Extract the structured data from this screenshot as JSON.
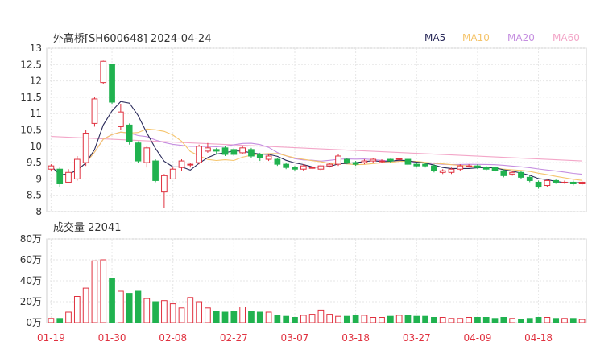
{
  "chart_data": [
    {
      "type": "candlestick",
      "title": "外高桥[SH600648] 2024-04-24",
      "legend": [
        {
          "name": "MA5",
          "color": "#2a2a5a"
        },
        {
          "name": "MA10",
          "color": "#f5c46b"
        },
        {
          "name": "MA20",
          "color": "#c58ee0"
        },
        {
          "name": "MA60",
          "color": "#f3a6c8"
        }
      ],
      "up_color": "#e0313f",
      "down_color": "#20b24f",
      "ylim": [
        8,
        13
      ],
      "yticks": [
        "13",
        "12.5",
        "12",
        "11.5",
        "11",
        "10.5",
        "10",
        "9.5",
        "9",
        "8.5",
        "8"
      ],
      "candles": [
        [
          9.3,
          9.4,
          9.45,
          9.25
        ],
        [
          9.3,
          8.85,
          9.35,
          8.75
        ],
        [
          8.9,
          9.2,
          9.3,
          8.9
        ],
        [
          9.0,
          9.6,
          9.7,
          8.95
        ],
        [
          9.5,
          10.4,
          10.5,
          9.4
        ],
        [
          10.7,
          11.45,
          11.5,
          10.6
        ],
        [
          11.95,
          12.6,
          12.62,
          11.9
        ],
        [
          12.5,
          11.35,
          12.5,
          11.3
        ],
        [
          10.6,
          11.05,
          11.3,
          10.5
        ],
        [
          10.65,
          10.15,
          10.7,
          10.05
        ],
        [
          10.1,
          9.55,
          10.15,
          9.5
        ],
        [
          9.5,
          9.95,
          10.0,
          9.35
        ],
        [
          9.55,
          8.95,
          9.6,
          8.9
        ],
        [
          8.6,
          9.1,
          9.15,
          8.1
        ],
        [
          9.0,
          9.3,
          9.35,
          9.0
        ],
        [
          9.35,
          9.55,
          9.6,
          9.25
        ],
        [
          9.45,
          9.45,
          9.5,
          9.35
        ],
        [
          9.5,
          10.0,
          10.05,
          9.45
        ],
        [
          9.85,
          9.95,
          10.1,
          9.8
        ],
        [
          9.9,
          9.85,
          9.95,
          9.75
        ],
        [
          9.95,
          9.75,
          10.0,
          9.7
        ],
        [
          9.9,
          9.75,
          9.95,
          9.7
        ],
        [
          9.8,
          9.95,
          10.0,
          9.75
        ],
        [
          9.9,
          9.7,
          9.95,
          9.65
        ],
        [
          9.75,
          9.65,
          9.8,
          9.55
        ],
        [
          9.6,
          9.7,
          9.75,
          9.55
        ],
        [
          9.6,
          9.45,
          9.65,
          9.4
        ],
        [
          9.45,
          9.35,
          9.5,
          9.3
        ],
        [
          9.35,
          9.3,
          9.4,
          9.25
        ],
        [
          9.3,
          9.4,
          9.45,
          9.25
        ],
        [
          9.35,
          9.35,
          9.4,
          9.3
        ],
        [
          9.3,
          9.4,
          9.45,
          9.25
        ],
        [
          9.4,
          9.45,
          9.5,
          9.35
        ],
        [
          9.45,
          9.7,
          9.75,
          9.4
        ],
        [
          9.6,
          9.5,
          9.65,
          9.45
        ],
        [
          9.5,
          9.45,
          9.55,
          9.4
        ],
        [
          9.5,
          9.55,
          9.6,
          9.45
        ],
        [
          9.55,
          9.6,
          9.65,
          9.5
        ],
        [
          9.55,
          9.55,
          9.6,
          9.5
        ],
        [
          9.6,
          9.55,
          9.62,
          9.5
        ],
        [
          9.6,
          9.62,
          9.65,
          9.55
        ],
        [
          9.6,
          9.45,
          9.62,
          9.4
        ],
        [
          9.45,
          9.4,
          9.5,
          9.35
        ],
        [
          9.45,
          9.4,
          9.5,
          9.35
        ],
        [
          9.4,
          9.25,
          9.45,
          9.2
        ],
        [
          9.2,
          9.25,
          9.3,
          9.15
        ],
        [
          9.2,
          9.3,
          9.35,
          9.15
        ],
        [
          9.3,
          9.4,
          9.45,
          9.25
        ],
        [
          9.4,
          9.4,
          9.45,
          9.35
        ],
        [
          9.4,
          9.35,
          9.45,
          9.3
        ],
        [
          9.35,
          9.3,
          9.4,
          9.25
        ],
        [
          9.35,
          9.25,
          9.4,
          9.2
        ],
        [
          9.25,
          9.1,
          9.3,
          9.05
        ],
        [
          9.15,
          9.2,
          9.25,
          9.1
        ],
        [
          9.2,
          9.05,
          9.25,
          9.0
        ],
        [
          9.05,
          8.95,
          9.1,
          8.9
        ],
        [
          8.9,
          8.75,
          8.95,
          8.7
        ],
        [
          8.8,
          8.95,
          9.0,
          8.75
        ],
        [
          8.95,
          8.9,
          8.98,
          8.85
        ],
        [
          8.9,
          8.9,
          8.95,
          8.85
        ],
        [
          8.9,
          8.85,
          8.95,
          8.8
        ],
        [
          8.85,
          8.9,
          8.95,
          8.8
        ]
      ]
    },
    {
      "type": "bar",
      "title": "成交量 22041",
      "ylim": [
        0,
        80
      ],
      "yticks": [
        "80万",
        "60万",
        "40万",
        "20万",
        "0万"
      ],
      "volumes": [
        4,
        4,
        10,
        25,
        33,
        59,
        60,
        42,
        30,
        28,
        30,
        23,
        20,
        21,
        18,
        14,
        24,
        20,
        14,
        11,
        10,
        11,
        15,
        11,
        10,
        10,
        7,
        6,
        5,
        7,
        8,
        12,
        8,
        6,
        6,
        7,
        7,
        5,
        5,
        6,
        7,
        7,
        6,
        6,
        5,
        5,
        4,
        4,
        5,
        5,
        5,
        4,
        5,
        4,
        3,
        4,
        5,
        5,
        4,
        4,
        4,
        3
      ]
    }
  ],
  "x_ticks": [
    {
      "label": "01-19",
      "index": 0
    },
    {
      "label": "01-30",
      "index": 7
    },
    {
      "label": "02-08",
      "index": 14
    },
    {
      "label": "02-27",
      "index": 21
    },
    {
      "label": "03-07",
      "index": 28
    },
    {
      "label": "03-18",
      "index": 35
    },
    {
      "label": "03-27",
      "index": 42
    },
    {
      "label": "04-09",
      "index": 49
    },
    {
      "label": "04-18",
      "index": 56
    }
  ]
}
